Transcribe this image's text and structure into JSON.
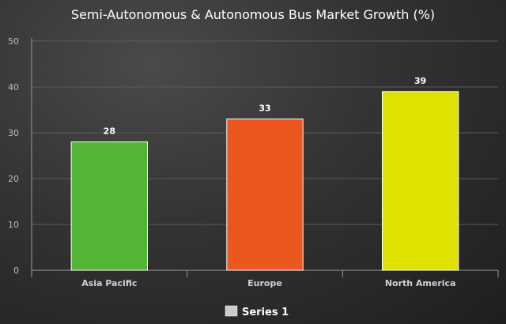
{
  "chart_data": {
    "type": "bar",
    "title": "Semi-Autonomous & Autonomous Bus Market Growth (%)",
    "categories": [
      "Asia Pacific",
      "Europe",
      "North America"
    ],
    "series": [
      {
        "name": "Series 1",
        "values": [
          28,
          33,
          39
        ]
      }
    ],
    "bar_colors": [
      "#52b536",
      "#ec561f",
      "#dfe100"
    ],
    "ylim": [
      0,
      50
    ],
    "yticks": [
      0,
      10,
      20,
      30,
      40,
      50
    ],
    "grid": true,
    "legend": {
      "position": "bottom-center",
      "swatch_color": "#cccccc"
    }
  }
}
